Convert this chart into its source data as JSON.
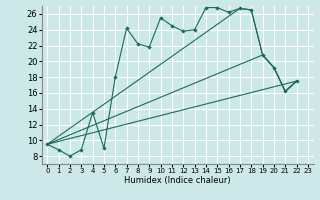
{
  "xlabel": "Humidex (Indice chaleur)",
  "bg_color": "#cce8e8",
  "grid_color": "#ffffff",
  "line_color": "#1a6b5a",
  "xlim": [
    -0.5,
    23.5
  ],
  "ylim": [
    7,
    27
  ],
  "yticks": [
    8,
    10,
    12,
    14,
    16,
    18,
    20,
    22,
    24,
    26
  ],
  "xticks": [
    0,
    1,
    2,
    3,
    4,
    5,
    6,
    7,
    8,
    9,
    10,
    11,
    12,
    13,
    14,
    15,
    16,
    17,
    18,
    19,
    20,
    21,
    22,
    23
  ],
  "series_main": {
    "x": [
      0,
      1,
      2,
      3,
      4,
      5,
      6,
      7,
      8,
      9,
      10,
      11,
      12,
      13,
      14,
      15,
      16,
      17,
      18,
      19,
      20,
      21,
      22
    ],
    "y": [
      9.5,
      8.8,
      8.0,
      8.8,
      13.5,
      9.0,
      18.0,
      24.2,
      22.2,
      21.8,
      25.5,
      24.5,
      23.8,
      24.0,
      26.8,
      26.8,
      26.2,
      26.7,
      26.5,
      20.8,
      19.2,
      16.2,
      17.5
    ]
  },
  "line_bottom": {
    "x": [
      0,
      22
    ],
    "y": [
      9.5,
      17.5
    ]
  },
  "line_mid": {
    "x": [
      0,
      19,
      20,
      21,
      22
    ],
    "y": [
      9.5,
      20.8,
      19.2,
      16.2,
      17.5
    ]
  },
  "line_upper": {
    "x": [
      0,
      17,
      18,
      19,
      20,
      21,
      22
    ],
    "y": [
      9.5,
      26.7,
      26.5,
      20.8,
      19.2,
      16.2,
      17.5
    ]
  }
}
